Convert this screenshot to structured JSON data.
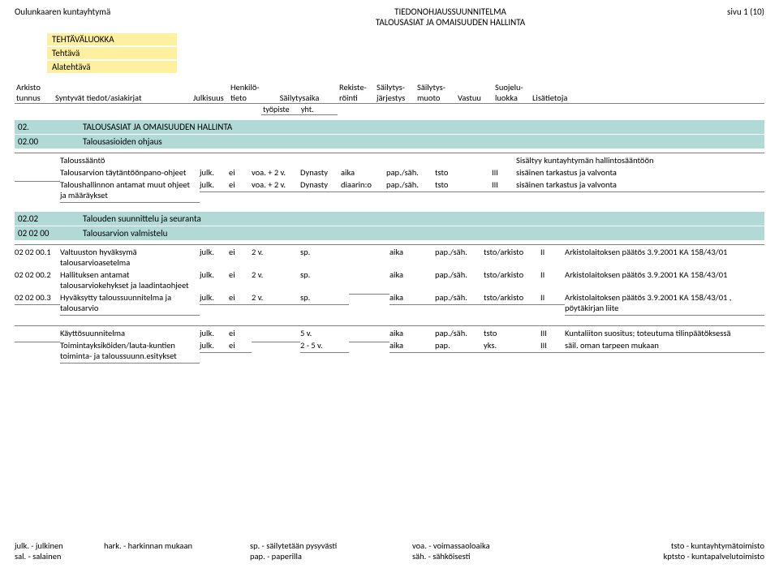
{
  "header": {
    "org": "Oulunkaaren kuntayhtymä",
    "title1": "TIEDONOHJAUSSUUNNITELMA",
    "title2": "TALOUSASIAT JA OMAISUUDEN HALLINTA",
    "page": "sivu 1 (10)"
  },
  "class_labels": {
    "l1": "TEHTÄVÄLUOKKA",
    "l2": "Tehtävä",
    "l3": "Alatehtävä"
  },
  "col_heads": {
    "arkistotunnus1": "Arkisto",
    "arkistotunnus2": "tunnus",
    "syntyvat": "Syntyvät tiedot/asiakirjat",
    "julkisuus": "Julkisuus",
    "henkilo1": "Henkilö-",
    "henkilo2": "tieto",
    "sailytysaika": "Säilytysaika",
    "tyopiste": "työpiste",
    "yht": "yht.",
    "rek1": "Rekiste-",
    "rek2": "röinti",
    "sj1": "Säilytys-",
    "sj2": "järjestys",
    "sm1": "Säilytys-",
    "sm2": "muoto",
    "vastuu": "Vastuu",
    "suo1": "Suojelu-",
    "suo2": "luokka",
    "lisa": "Lisätietoja"
  },
  "sections": [
    {
      "code": "02.",
      "title": "TALOUSASIAT JA OMAISUUDEN HALLINTA"
    },
    {
      "code": "02.00",
      "title": "Talousasioiden ohjaus"
    }
  ],
  "block1": [
    {
      "lead": "",
      "desc": "Taloussääntö",
      "v": [
        "",
        "",
        "",
        "",
        "",
        "",
        "",
        "",
        "Sisältyy kuntayhtymän hallintosääntöön"
      ]
    },
    {
      "lead": "",
      "desc": "Talousarvion täytäntöönpano-ohjeet",
      "v": [
        "julk.",
        "ei",
        "voa. + 2 v.",
        "Dynasty",
        "aika",
        "pap./säh.",
        "tsto",
        "III",
        "sisäinen tarkastus ja valvonta"
      ]
    },
    {
      "lead": "",
      "desc": "Taloushallinnon antamat muut ohjeet ja määräykset",
      "v": [
        "julk.",
        "ei",
        "voa. + 2 v.",
        "Dynasty",
        "diaarin:o",
        "pap./säh.",
        "tsto",
        "III",
        "sisäinen tarkastus ja valvonta"
      ]
    }
  ],
  "sections2": [
    {
      "code": "02.02",
      "title": "Talouden suunnittelu ja seuranta"
    },
    {
      "code": "02 02 00",
      "title": "Talousarvion valmistelu"
    }
  ],
  "block2": [
    {
      "lead": "02 02 00.1",
      "desc": "Valtuuston hyväksymä talousarvioasetelma",
      "v": [
        "julk.",
        "ei",
        "2 v.",
        "sp.",
        "",
        "aika",
        "pap./säh.",
        "tsto/arkisto",
        "II",
        "Arkistolaitoksen päätös 3.9.2001 KA 158/43/01"
      ]
    },
    {
      "lead": "02 02 00.2",
      "desc": "Hallituksen antamat talousarviokehykset ja laadintaohjeet",
      "v": [
        "julk.",
        "ei",
        "2 v.",
        "sp.",
        "",
        "aika",
        "pap./säh.",
        "tsto/arkisto",
        "II",
        "Arkistolaitoksen päätös 3.9.2001 KA 158/43/01"
      ]
    },
    {
      "lead": "02 02 00.3",
      "desc": "Hyväksytty taloussuunnitelma ja talousarvio",
      "v": [
        "julk.",
        "ei",
        "2 v.",
        "sp.",
        "",
        "aika",
        "pap./säh.",
        "tsto/arkisto",
        "II",
        "Arkistolaitoksen päätös 3.9.2001 KA 158/43/01 , pöytäkirjan liite"
      ]
    }
  ],
  "block3": [
    {
      "lead": "",
      "desc": "Käyttösuunnitelma",
      "v": [
        "julk.",
        "ei",
        "",
        "5 v.",
        "",
        "aika",
        "pap./säh.",
        "tsto",
        "III",
        "Kuntaliiton suositus; toteutuma tilinpäätöksessä"
      ]
    },
    {
      "lead": "",
      "desc": "Toimintayksiköiden/lauta-kuntien toiminta- ja taloussuunn.esitykset",
      "v": [
        "julk.",
        "ei",
        "",
        "2 - 5 v.",
        "",
        "aika",
        "pap.",
        "yks.",
        "III",
        "säil. oman tarpeen mukaan"
      ]
    }
  ],
  "legend": {
    "r1": [
      "julk. - julkinen",
      "hark. - harkinnan mukaan",
      "sp. - säilytetään pysyvästi",
      "voa. - voimassaoloaika",
      "tsto - kuntayhtymätoimisto"
    ],
    "r2": [
      "sal. - salainen",
      "",
      "pap. - paperilla",
      "säh. - sähköisesti",
      "kptsto - kuntapalvelutoimisto"
    ]
  },
  "colors": {
    "yellow": "#fff0a0",
    "teal": "#b1d9d6",
    "border": "#808080",
    "text": "#000000",
    "bg": "#ffffff"
  },
  "font_family": "Calibri",
  "fontsize_body": 11,
  "fontsize_small": 10.5
}
